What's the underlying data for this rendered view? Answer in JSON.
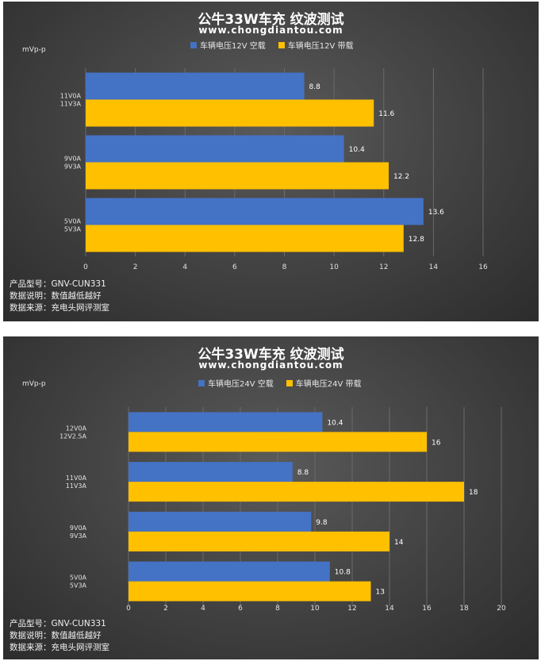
{
  "chart_data": [
    {
      "type": "bar",
      "orientation": "horizontal",
      "title": "公牛33W车充 纹波测试",
      "subtitle": "www.chongdiantou.com",
      "ylabel": "mVp-p",
      "categories": [
        {
          "line1": "11V0A",
          "line2": "11V3A"
        },
        {
          "line1": "9V0A",
          "line2": "9V3A"
        },
        {
          "line1": "5V0A",
          "line2": "5V3A"
        }
      ],
      "series": [
        {
          "name": "车辆电压12V 空载",
          "values": [
            8.8,
            10.4,
            13.6
          ],
          "color": "#4472C4"
        },
        {
          "name": "车辆电压12V 带载",
          "values": [
            11.6,
            12.2,
            12.8
          ],
          "color": "#FFC000"
        }
      ],
      "xlim": [
        0,
        16
      ],
      "xticks": [
        "0",
        "2",
        "4",
        "6",
        "8",
        "10",
        "12",
        "14",
        "16"
      ],
      "grid": true,
      "legend": "top",
      "notes": [
        "产品型号：GNV-CUN331",
        "数据说明：数值越低越好",
        "数据来源：充电头网评测室"
      ]
    },
    {
      "type": "bar",
      "orientation": "horizontal",
      "title": "公牛33W车充 纹波测试",
      "subtitle": "www.chongdiantou.com",
      "ylabel": "mVp-p",
      "categories": [
        {
          "line1": "12V0A",
          "line2": "12V2.5A"
        },
        {
          "line1": "11V0A",
          "line2": "11V3A"
        },
        {
          "line1": "9V0A",
          "line2": "9V3A"
        },
        {
          "line1": "5V0A",
          "line2": "5V3A"
        }
      ],
      "series": [
        {
          "name": "车辆电压24V 空载",
          "values": [
            10.4,
            8.8,
            9.8,
            10.8
          ],
          "color": "#4472C4"
        },
        {
          "name": "车辆电压24V 带载",
          "values": [
            16,
            18,
            14,
            13
          ],
          "color": "#FFC000"
        }
      ],
      "xlim": [
        0,
        20
      ],
      "xticks": [
        "0",
        "2",
        "4",
        "6",
        "8",
        "10",
        "12",
        "14",
        "16",
        "18",
        "20"
      ],
      "grid": true,
      "legend": "top",
      "notes": [
        "产品型号：GNV-CUN331",
        "数据说明：数值越低越好",
        "数据来源：充电头网评测室"
      ]
    }
  ]
}
